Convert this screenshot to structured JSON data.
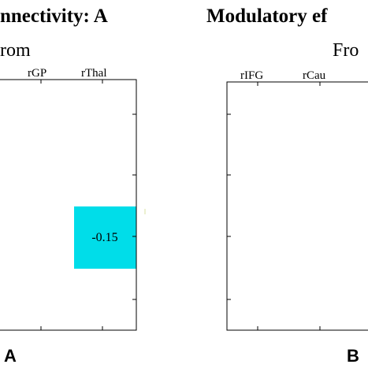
{
  "panels": [
    {
      "title": "nnectivity: A",
      "subtitle": "rom",
      "panel_label": "A"
    },
    {
      "title": "Modulatory ef",
      "subtitle": "Fro",
      "panel_label": "B"
    }
  ],
  "chart_data": [
    {
      "type": "heatmap",
      "title": "nnectivity: A",
      "subtitle": "rom",
      "x_tick_labels": [
        "rGP",
        "rThal"
      ],
      "cells": [
        {
          "column": "rThal",
          "row_index": 2,
          "value": -0.15,
          "label": "-0.15",
          "color": "#00dde9"
        }
      ],
      "grid": false,
      "colors": {
        "positive": "#00dde9"
      }
    },
    {
      "type": "heatmap",
      "title": "Modulatory ef",
      "subtitle": "Fro",
      "x_tick_labels": [
        "rIFG",
        "rCau"
      ],
      "cells": [],
      "grid": false
    }
  ]
}
